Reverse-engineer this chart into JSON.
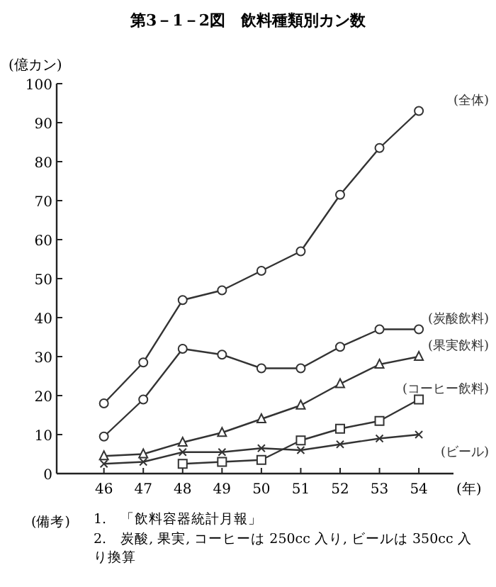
{
  "chart_data": {
    "type": "line",
    "title": "第3－1－2図　飲料種類別カン数",
    "ylabel": "(億カン)",
    "xlabel": "(年)",
    "categories": [
      "46",
      "47",
      "48",
      "49",
      "50",
      "51",
      "52",
      "53",
      "54"
    ],
    "ylim": [
      0,
      100
    ],
    "yticks": [
      0,
      10,
      20,
      30,
      40,
      50,
      60,
      70,
      80,
      90,
      100
    ],
    "grid": false,
    "legend": false,
    "series": [
      {
        "name": "(全体)",
        "color": "#333333",
        "marker": "circle",
        "values": [
          18,
          28.5,
          44.5,
          47,
          52,
          57,
          71.5,
          83.5,
          93
        ]
      },
      {
        "name": "(炭酸飲料)",
        "color": "#333333",
        "marker": "circle",
        "values": [
          9.5,
          19,
          32,
          30.5,
          27,
          27,
          32.5,
          37,
          37
        ]
      },
      {
        "name": "(果実飲料)",
        "color": "#333333",
        "marker": "triangle",
        "values": [
          4.5,
          5,
          8,
          10.5,
          14,
          17.5,
          23,
          28,
          30
        ]
      },
      {
        "name": "(コーヒー飲料)",
        "color": "#333333",
        "marker": "square",
        "values": [
          null,
          null,
          2.5,
          3,
          3.5,
          8.5,
          11.5,
          13.5,
          19
        ]
      },
      {
        "name": "(ビール)",
        "color": "#333333",
        "marker": "cross",
        "values": [
          2.5,
          3,
          5.5,
          5.5,
          6.5,
          6,
          7.5,
          9,
          10
        ]
      }
    ],
    "annotations": [
      "(備考)",
      "1.　「飲料容器統計月報」",
      "2.　炭酸, 果実, コーヒーは 250cc 入り, ビールは 350cc 入り換算"
    ]
  }
}
